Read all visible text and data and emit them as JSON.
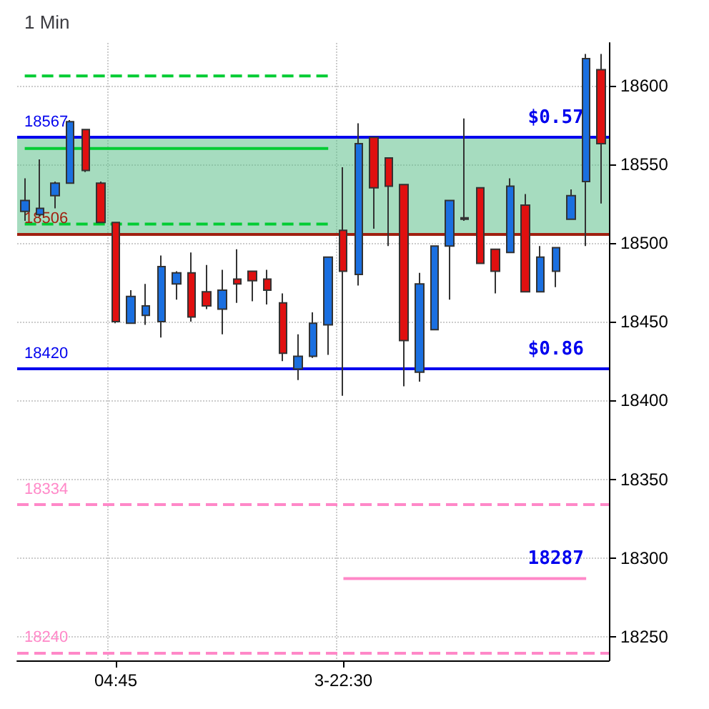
{
  "chart_data": {
    "type": "candlestick",
    "title": "1 Min",
    "categories": [
      null,
      null,
      null,
      null,
      null,
      null,
      "04:45",
      null,
      null,
      null,
      null,
      null,
      null,
      null,
      null,
      null,
      null,
      null,
      null,
      null,
      null,
      "3-22:30",
      null,
      null,
      null,
      null,
      null,
      null,
      null,
      null,
      null,
      null,
      null,
      null,
      null,
      null,
      null,
      null,
      null
    ],
    "series": [
      {
        "type": "candlestick",
        "ohlc": [
          [
            18520,
            18541,
            18514,
            18527
          ],
          [
            18518,
            18553,
            18517,
            18522
          ],
          [
            18530,
            18539,
            18522,
            18538
          ],
          [
            18538,
            18578,
            18538,
            18577
          ],
          [
            18572,
            18572,
            18545,
            18546
          ],
          [
            18538,
            18539,
            18513,
            18513
          ],
          [
            18513,
            18513,
            18449,
            18450
          ],
          [
            18449,
            18470,
            18449,
            18466
          ],
          [
            18454,
            18474,
            18448,
            18460
          ],
          [
            18450,
            18492,
            18440,
            18485
          ],
          [
            18474,
            18482,
            18464,
            18481
          ],
          [
            18481,
            18494,
            18450,
            18453
          ],
          [
            18469,
            18486,
            18458,
            18460
          ],
          [
            18458,
            18483,
            18442,
            18470
          ],
          [
            18477,
            18496,
            18462,
            18474
          ],
          [
            18482,
            18482,
            18463,
            18476
          ],
          [
            18477,
            18483,
            18461,
            18470
          ],
          [
            18462,
            18468,
            18425,
            18430
          ],
          [
            18420,
            18442,
            18413,
            18428
          ],
          [
            18428,
            18456,
            18427,
            18449
          ],
          [
            18448,
            18491,
            18429,
            18491
          ],
          [
            18508,
            18548,
            18403,
            18482
          ],
          [
            18480,
            18576,
            18473,
            18563
          ],
          [
            18567,
            18567,
            18509,
            18535
          ],
          [
            18554,
            18554,
            18498,
            18536
          ],
          [
            18537,
            18537,
            18409,
            18438
          ],
          [
            18418,
            18481,
            18412,
            18474
          ],
          [
            18445,
            18498,
            18445,
            18498
          ],
          [
            18498,
            18527,
            18464,
            18527
          ],
          [
            18515,
            18579,
            18514,
            18516
          ],
          [
            18535,
            18535,
            18487,
            18487
          ],
          [
            18496,
            18496,
            18468,
            18482
          ],
          [
            18494,
            18541,
            18494,
            18536
          ],
          [
            18524,
            18531,
            18469,
            18469
          ],
          [
            18469,
            18498,
            18469,
            18491
          ],
          [
            18482,
            18497,
            18472,
            18497
          ],
          [
            18515,
            18534,
            18515,
            18530
          ],
          [
            18539,
            18620,
            18498,
            18617
          ],
          [
            18610,
            18620,
            18525,
            18563
          ]
        ],
        "colors": [
          "#1a6fe0",
          "#1a6fe0",
          "#1a6fe0",
          "#1a6fe0",
          "#e01010",
          "#e01010",
          "#e01010",
          "#1a6fe0",
          "#1a6fe0",
          "#1a6fe0",
          "#1a6fe0",
          "#e01010",
          "#e01010",
          "#1a6fe0",
          "#e01010",
          "#e01010",
          "#e01010",
          "#e01010",
          "#1a6fe0",
          "#1a6fe0",
          "#1a6fe0",
          "#e01010",
          "#1a6fe0",
          "#e01010",
          "#e01010",
          "#e01010",
          "#1a6fe0",
          "#1a6fe0",
          "#1a6fe0",
          "#1a6fe0",
          "#e01010",
          "#e01010",
          "#1a6fe0",
          "#e01010",
          "#1a6fe0",
          "#1a6fe0",
          "#1a6fe0",
          "#1a6fe0",
          "#e01010"
        ]
      },
      {
        "type": "line",
        "color": "#00cc33",
        "line_style": "solid",
        "values": [
          18560,
          18560,
          18560,
          18560,
          18560,
          18560,
          18560,
          18560,
          18560,
          18560,
          18560,
          18560,
          18560,
          18560,
          18560,
          18560,
          18560,
          18560,
          18560,
          18560,
          18560,
          null,
          null,
          null,
          null,
          null,
          null,
          null,
          null,
          null,
          null,
          null,
          null,
          null,
          null,
          null,
          null,
          null,
          null
        ]
      },
      {
        "type": "line",
        "color": "#00cc33",
        "line_style": "dashed",
        "values": [
          18606,
          18606,
          18606,
          18606,
          18606,
          18606,
          18606,
          18606,
          18606,
          18606,
          18606,
          18606,
          18606,
          18606,
          18606,
          18606,
          18606,
          18606,
          18606,
          18606,
          18606,
          null,
          null,
          null,
          null,
          null,
          null,
          null,
          null,
          null,
          null,
          null,
          null,
          null,
          null,
          null,
          null,
          null,
          null
        ]
      },
      {
        "type": "line",
        "color": "#00cc33",
        "line_style": "dashed",
        "values": [
          18512,
          18512,
          18512,
          18512,
          18512,
          18512,
          18512,
          18512,
          18512,
          18512,
          18512,
          18512,
          18512,
          18512,
          18512,
          18512,
          18512,
          18512,
          18512,
          18512,
          18512,
          null,
          null,
          null,
          null,
          null,
          null,
          null,
          null,
          null,
          null,
          null,
          null,
          null,
          null,
          null,
          null,
          null,
          null
        ]
      },
      {
        "type": "line",
        "color": "#ff88c8",
        "line_style": "solid",
        "values": [
          null,
          null,
          null,
          null,
          null,
          null,
          null,
          null,
          null,
          null,
          null,
          null,
          null,
          null,
          null,
          null,
          null,
          null,
          null,
          null,
          null,
          18287,
          18287,
          18287,
          18287,
          18287,
          18287,
          18287,
          18287,
          18287,
          18287,
          18287,
          18287,
          18287,
          18287,
          18287,
          18287,
          18287,
          null
        ]
      }
    ],
    "ylim": [
      18235,
      18627
    ],
    "yticks": [
      18250,
      18300,
      18350,
      18400,
      18450,
      18500,
      18550,
      18600
    ],
    "grid": true,
    "bands": [
      {
        "axis": "y",
        "from": 18506,
        "to": 18567,
        "color": "#5cc08a"
      }
    ],
    "ref_lines": [
      {
        "axis": "y",
        "value": 18567,
        "label": "18567",
        "color": "#0000ee",
        "line_style": "solid"
      },
      {
        "axis": "y",
        "value": 18506,
        "label": "18506",
        "color": "#a02010",
        "line_style": "solid"
      },
      {
        "axis": "y",
        "value": 18420,
        "label": "18420",
        "color": "#0000ee",
        "line_style": "solid"
      },
      {
        "axis": "y",
        "value": 18334,
        "label": "18334",
        "color": "#ff88c8",
        "line_style": "dashed"
      },
      {
        "axis": "y",
        "value": 18240,
        "label": "18240",
        "color": "#ff88c8",
        "line_style": "dashed"
      }
    ],
    "annotations": [
      {
        "text": "$0.57",
        "y": 18567
      },
      {
        "text": "$0.86",
        "y": 18420
      },
      {
        "text": "18287",
        "y": 18287
      }
    ]
  }
}
